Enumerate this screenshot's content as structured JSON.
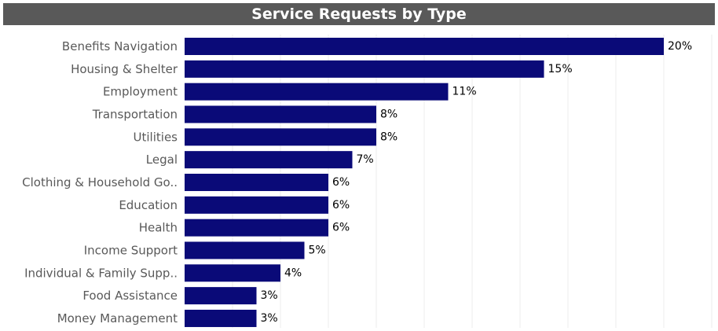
{
  "chart_data": {
    "type": "bar",
    "orientation": "horizontal",
    "title": "Service Requests by Type",
    "xlabel": "",
    "ylabel": "",
    "xlim": [
      0,
      22
    ],
    "grid": "vertical",
    "legend": "none",
    "categories": [
      "Benefits Navigation",
      "Housing & Shelter",
      "Employment",
      "Transportation",
      "Utilities",
      "Legal",
      "Clothing & Household Go..",
      "Education",
      "Health",
      "Income Support",
      "Individual & Family Supp..",
      "Food Assistance",
      "Money Management"
    ],
    "values": [
      20,
      15,
      11,
      8,
      8,
      7,
      6,
      6,
      6,
      5,
      4,
      3,
      3
    ],
    "value_labels": [
      "20%",
      "15%",
      "11%",
      "8%",
      "8%",
      "7%",
      "6%",
      "6%",
      "6%",
      "5%",
      "4%",
      "3%",
      "3%"
    ],
    "colors": {
      "bar": "#0a0a78",
      "title_bg": "#595959",
      "title_text": "#ffffff",
      "grid": "#ececec"
    }
  }
}
